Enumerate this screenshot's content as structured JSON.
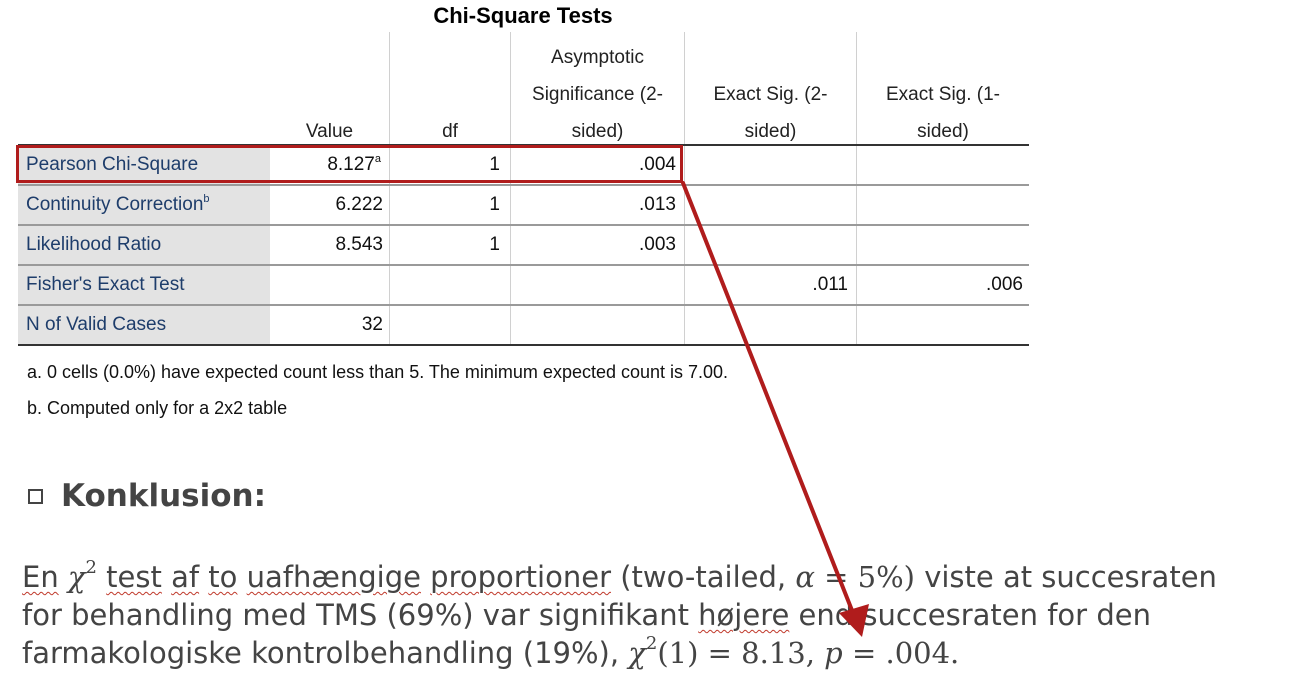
{
  "table": {
    "title": "Chi-Square Tests",
    "headers": {
      "value": "Value",
      "df": "df",
      "asymp": [
        "Asymptotic",
        "Significance (2-",
        "sided)"
      ],
      "exact2": [
        "Exact Sig. (2-",
        "sided)"
      ],
      "exact1": [
        "Exact Sig. (1-",
        "sided)"
      ]
    },
    "rows": [
      {
        "label": "Pearson Chi-Square",
        "label_sup": "",
        "value": "8.127",
        "value_sup": "a",
        "df": "1",
        "asymp": ".004",
        "exact2": "",
        "exact1": ""
      },
      {
        "label": "Continuity Correction",
        "label_sup": "b",
        "value": "6.222",
        "value_sup": "",
        "df": "1",
        "asymp": ".013",
        "exact2": "",
        "exact1": ""
      },
      {
        "label": "Likelihood Ratio",
        "label_sup": "",
        "value": "8.543",
        "value_sup": "",
        "df": "1",
        "asymp": ".003",
        "exact2": "",
        "exact1": ""
      },
      {
        "label": "Fisher's Exact Test",
        "label_sup": "",
        "value": "",
        "value_sup": "",
        "df": "",
        "asymp": "",
        "exact2": ".011",
        "exact1": ".006"
      },
      {
        "label": "N of Valid Cases",
        "label_sup": "",
        "value": "32",
        "value_sup": "",
        "df": "",
        "asymp": "",
        "exact2": "",
        "exact1": ""
      }
    ],
    "footnotes": {
      "a": "a. 0 cells (0.0%) have expected count less than 5. The minimum expected count is 7.00.",
      "b": "b. Computed only for a 2x2 table"
    }
  },
  "conclusion": {
    "heading": "Konklusion:",
    "line1": {
      "w_en": "En",
      "chi": "χ",
      "sq": "2",
      "w_test": "test",
      "w_af": "af",
      "w_to": "to",
      "w_uaf": "uafhængige",
      "w_prop": "proportioner",
      "paren": "(two-tailed,",
      "alpha": "α",
      "alpha_eq": " = 5%)",
      "rest": "viste at succesraten"
    },
    "line2": {
      "a": "for behandling med TMS (69%) var signifikant",
      "hojere": "højere",
      "b": "end succesraten for den"
    },
    "line3": {
      "a": "farmakologiske kontrolbehandling (19%),",
      "chi": "χ",
      "sq": "2",
      "stat": "(1) = 8.13,",
      "p": "p",
      "pval": " = .004."
    }
  },
  "colors": {
    "highlight": "#b01c1c",
    "label_bg": "#e3e3e3",
    "label_text": "#1e3d6b"
  }
}
